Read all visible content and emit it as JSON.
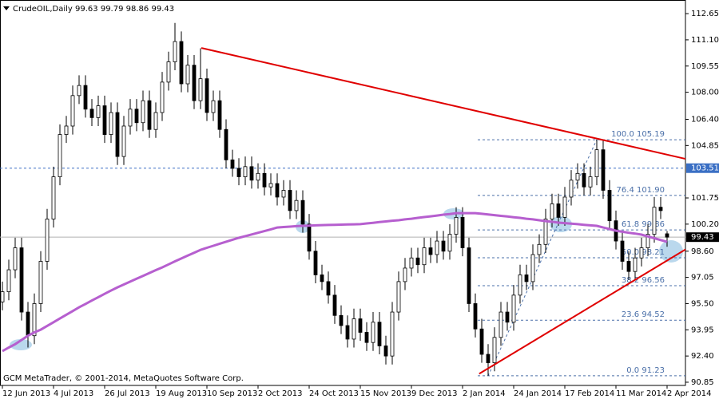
{
  "chart_data": {
    "type": "candlestick",
    "header": {
      "symbol": "CrudeOIL,Daily"
    },
    "footer": "GCM MetaTrader, © 2001-2014, MetaQuotes Software Corp.",
    "categories": [
      "12 Jun 2013",
      null,
      null,
      null,
      null,
      null,
      null,
      null,
      "4 Jul 2013",
      null,
      null,
      null,
      null,
      null,
      null,
      null,
      "26 Jul 2013",
      null,
      null,
      null,
      null,
      null,
      null,
      null,
      "19 Aug 2013",
      null,
      null,
      null,
      null,
      null,
      null,
      null,
      "10 Sep 2013",
      null,
      null,
      null,
      null,
      null,
      null,
      null,
      "2 Oct 2013",
      null,
      null,
      null,
      null,
      null,
      null,
      null,
      "24 Oct 2013",
      null,
      null,
      null,
      null,
      null,
      null,
      null,
      "15 Nov 2013",
      null,
      null,
      null,
      null,
      null,
      null,
      null,
      "9 Dec 2013",
      null,
      null,
      null,
      null,
      null,
      null,
      null,
      "2 Jan 2014",
      null,
      null,
      null,
      null,
      null,
      null,
      null,
      "24 Jan 2014",
      null,
      null,
      null,
      null,
      null,
      null,
      null,
      "17 Feb 2014",
      null,
      null,
      null,
      null,
      null,
      null,
      null,
      "11 Mar 2014",
      null,
      null,
      null,
      null,
      null,
      null,
      null,
      "2 Apr 2014"
    ],
    "ohlc": [
      [
        95.6,
        96.8,
        95.1,
        96.2
      ],
      [
        96.2,
        98.1,
        95.7,
        97.5
      ],
      [
        97.5,
        99.4,
        97.0,
        98.8
      ],
      [
        98.8,
        99.4,
        94.5,
        95.0
      ],
      [
        95.0,
        95.6,
        92.9,
        93.6
      ],
      [
        93.6,
        96.1,
        93.1,
        95.5
      ],
      [
        95.5,
        98.6,
        95.0,
        98.0
      ],
      [
        98.0,
        101.1,
        97.5,
        100.5
      ],
      [
        100.5,
        103.6,
        100.0,
        103.0
      ],
      [
        103.0,
        106.1,
        102.5,
        105.5
      ],
      [
        105.5,
        106.6,
        105.0,
        106.0
      ],
      [
        106.0,
        108.4,
        105.5,
        107.8
      ],
      [
        107.8,
        109.0,
        107.3,
        108.4
      ],
      [
        108.4,
        109.0,
        106.5,
        107.0
      ],
      [
        107.0,
        107.6,
        106.0,
        106.5
      ],
      [
        106.5,
        107.8,
        106.0,
        107.2
      ],
      [
        107.2,
        107.8,
        105.0,
        105.5
      ],
      [
        105.5,
        107.4,
        105.0,
        106.8
      ],
      [
        106.8,
        107.4,
        103.7,
        104.2
      ],
      [
        104.2,
        106.6,
        103.7,
        106.0
      ],
      [
        106.0,
        107.6,
        105.5,
        107.0
      ],
      [
        107.0,
        107.6,
        105.7,
        106.2
      ],
      [
        106.2,
        108.1,
        105.7,
        107.5
      ],
      [
        107.5,
        108.1,
        105.3,
        105.8
      ],
      [
        105.8,
        107.4,
        105.3,
        106.8
      ],
      [
        106.8,
        109.2,
        106.3,
        108.6
      ],
      [
        108.6,
        110.4,
        108.1,
        109.8
      ],
      [
        109.8,
        112.1,
        109.3,
        111.0
      ],
      [
        111.0,
        111.6,
        108.0,
        108.5
      ],
      [
        108.5,
        110.2,
        108.0,
        109.6
      ],
      [
        109.6,
        110.2,
        107.0,
        107.5
      ],
      [
        107.5,
        110.6,
        107.0,
        108.8
      ],
      [
        108.8,
        109.4,
        106.3,
        106.8
      ],
      [
        106.8,
        108.1,
        106.3,
        107.5
      ],
      [
        107.5,
        108.1,
        105.3,
        105.8
      ],
      [
        105.8,
        106.4,
        103.5,
        104.0
      ],
      [
        104.0,
        104.6,
        103.0,
        103.5
      ],
      [
        103.5,
        104.1,
        102.5,
        103.0
      ],
      [
        103.0,
        104.2,
        102.5,
        103.6
      ],
      [
        103.6,
        104.2,
        102.3,
        102.8
      ],
      [
        102.8,
        103.8,
        102.3,
        103.2
      ],
      [
        103.2,
        103.8,
        101.9,
        102.4
      ],
      [
        102.4,
        103.2,
        101.9,
        102.6
      ],
      [
        102.6,
        103.2,
        101.3,
        101.8
      ],
      [
        101.8,
        102.8,
        101.3,
        102.2
      ],
      [
        102.2,
        102.8,
        100.5,
        101.0
      ],
      [
        101.0,
        102.2,
        100.5,
        101.6
      ],
      [
        101.6,
        102.2,
        99.7,
        100.2
      ],
      [
        100.2,
        100.8,
        98.1,
        98.6
      ],
      [
        98.6,
        99.2,
        96.7,
        97.2
      ],
      [
        97.2,
        97.8,
        96.3,
        96.8
      ],
      [
        96.8,
        97.4,
        95.5,
        96.0
      ],
      [
        96.0,
        96.6,
        94.3,
        94.8
      ],
      [
        94.8,
        95.4,
        93.7,
        94.2
      ],
      [
        94.2,
        94.8,
        92.9,
        93.4
      ],
      [
        93.4,
        95.2,
        92.9,
        94.6
      ],
      [
        94.6,
        95.2,
        93.3,
        93.8
      ],
      [
        93.8,
        94.4,
        92.7,
        93.2
      ],
      [
        93.2,
        95.0,
        92.7,
        94.4
      ],
      [
        94.4,
        95.0,
        92.5,
        93.0
      ],
      [
        93.0,
        93.6,
        91.9,
        92.4
      ],
      [
        92.4,
        95.6,
        91.9,
        95.0
      ],
      [
        95.0,
        97.4,
        94.5,
        96.8
      ],
      [
        96.8,
        98.2,
        96.3,
        97.6
      ],
      [
        97.6,
        98.8,
        97.1,
        98.2
      ],
      [
        98.2,
        98.8,
        97.3,
        97.8
      ],
      [
        97.8,
        99.4,
        97.3,
        98.8
      ],
      [
        98.8,
        99.4,
        97.9,
        98.4
      ],
      [
        98.4,
        99.8,
        97.9,
        99.2
      ],
      [
        99.2,
        99.8,
        98.1,
        98.6
      ],
      [
        98.6,
        100.2,
        98.1,
        99.6
      ],
      [
        99.6,
        101.2,
        99.1,
        100.6
      ],
      [
        100.6,
        101.2,
        98.3,
        98.8
      ],
      [
        98.8,
        99.4,
        95.0,
        95.5
      ],
      [
        95.5,
        96.1,
        93.5,
        94.0
      ],
      [
        94.0,
        94.6,
        92.0,
        92.5
      ],
      [
        92.5,
        93.1,
        91.23,
        92.0
      ],
      [
        92.0,
        94.1,
        91.5,
        93.5
      ],
      [
        93.5,
        95.6,
        93.0,
        95.0
      ],
      [
        95.0,
        95.6,
        93.9,
        94.4
      ],
      [
        94.4,
        96.6,
        93.9,
        96.0
      ],
      [
        96.0,
        97.8,
        95.5,
        97.2
      ],
      [
        97.2,
        97.8,
        96.3,
        96.8
      ],
      [
        96.8,
        99.0,
        96.3,
        98.4
      ],
      [
        98.4,
        99.6,
        97.9,
        99.0
      ],
      [
        99.0,
        101.1,
        98.5,
        100.5
      ],
      [
        100.5,
        102.0,
        100.0,
        101.4
      ],
      [
        101.4,
        102.0,
        100.1,
        100.6
      ],
      [
        100.6,
        102.4,
        100.1,
        101.8
      ],
      [
        101.8,
        103.4,
        101.3,
        102.8
      ],
      [
        102.8,
        103.8,
        102.3,
        103.2
      ],
      [
        103.2,
        103.8,
        101.9,
        102.4
      ],
      [
        102.4,
        103.6,
        101.9,
        103.0
      ],
      [
        103.0,
        105.19,
        102.5,
        104.6
      ],
      [
        104.6,
        105.2,
        101.7,
        102.2
      ],
      [
        102.2,
        102.8,
        99.9,
        100.4
      ],
      [
        100.4,
        101.0,
        98.7,
        99.2
      ],
      [
        99.2,
        99.8,
        97.5,
        98.0
      ],
      [
        98.0,
        98.6,
        96.9,
        97.4
      ],
      [
        97.4,
        98.8,
        96.9,
        98.2
      ],
      [
        98.2,
        99.4,
        97.7,
        98.8
      ],
      [
        98.8,
        100.2,
        98.3,
        99.6
      ],
      [
        99.6,
        101.8,
        99.1,
        101.2
      ],
      [
        101.2,
        101.8,
        100.5,
        101.0
      ],
      [
        99.63,
        99.79,
        98.86,
        99.43
      ]
    ],
    "bull_color": "#ffffff",
    "bear_color": "#000000",
    "moving_average": {
      "color": "#b65fcf",
      "values": [
        92.69,
        92.9,
        93.1,
        93.35,
        93.6,
        93.8,
        93.96,
        94.18,
        94.4,
        94.62,
        94.84,
        95.06,
        95.28,
        95.48,
        95.68,
        95.88,
        96.08,
        96.27,
        96.46,
        96.63,
        96.8,
        96.97,
        97.14,
        97.31,
        97.48,
        97.64,
        97.82,
        98.0,
        98.17,
        98.34,
        98.51,
        98.68,
        98.8,
        98.92,
        99.04,
        99.16,
        99.28,
        99.39,
        99.49,
        99.59,
        99.69,
        99.79,
        99.89,
        100.0,
        100.03,
        100.05,
        100.08,
        100.1,
        100.11,
        100.13,
        100.14,
        100.15,
        100.16,
        100.17,
        100.18,
        100.19,
        100.2,
        100.24,
        100.28,
        100.32,
        100.36,
        100.4,
        100.43,
        100.48,
        100.52,
        100.57,
        100.62,
        100.66,
        100.71,
        100.76,
        100.8,
        100.85,
        100.85,
        100.85,
        100.85,
        100.81,
        100.77,
        100.73,
        100.69,
        100.65,
        100.61,
        100.57,
        100.52,
        100.48,
        100.43,
        100.38,
        100.34,
        100.29,
        100.26,
        100.23,
        100.2,
        100.16,
        100.13,
        100.1,
        100.0,
        99.91,
        99.81,
        99.75,
        99.69,
        99.64,
        99.58,
        99.47,
        99.37,
        99.26,
        99.15
      ]
    },
    "trendlines": [
      {
        "color": "#e00000",
        "x": [
          31.125,
          106.875
        ],
        "y": [
          110.62,
          104.06
        ]
      },
      {
        "color": "#e00000",
        "x": [
          74.6,
          106.875
        ],
        "y": [
          91.35,
          98.7
        ]
      }
    ],
    "fibonacci": {
      "color": "#4a6fa8",
      "levels": [
        {
          "ratio": "100.0",
          "price": 105.19
        },
        {
          "ratio": "76.4",
          "price": 101.9,
          "price_label": "101.90"
        },
        {
          "ratio": "61.8",
          "price": 99.86
        },
        {
          "ratio": "50.0",
          "price": 98.21
        },
        {
          "ratio": "38.2",
          "price": 96.56
        },
        {
          "ratio": "23.6",
          "price": 94.52
        },
        {
          "ratio": "0.0",
          "price": 91.23
        }
      ]
    },
    "horizontal_line": {
      "value": 103.51,
      "color": "#3a6fc4"
    },
    "ylim": [
      90.66,
      113.22
    ],
    "yticks": [
      112.65,
      {
        "value": 111.1,
        "label": "111.10"
      },
      109.55,
      {
        "value": 108.0,
        "label": "108.00"
      },
      {
        "value": 106.4,
        "label": "106.40"
      },
      104.85,
      101.75,
      {
        "value": 100.2,
        "label": "100.20"
      },
      {
        "value": 98.6,
        "label": "98.60"
      },
      97.05,
      {
        "value": 95.5,
        "label": "95.50"
      },
      93.95,
      {
        "value": 92.4,
        "label": "92.40"
      },
      90.85
    ]
  }
}
